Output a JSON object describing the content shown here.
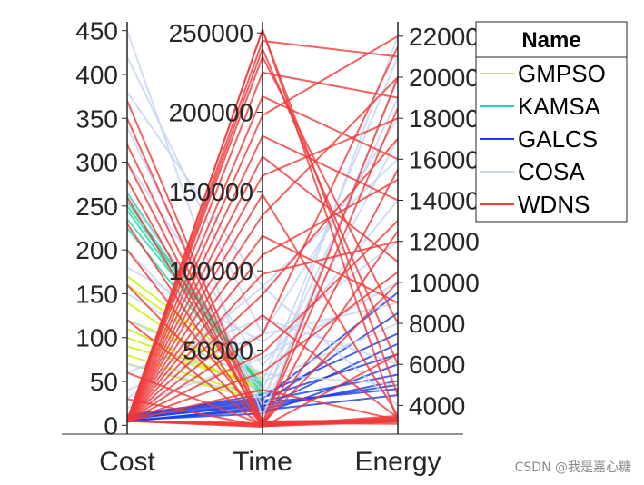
{
  "chart_data": {
    "type": "parallel-coordinates",
    "title": "",
    "axes": [
      {
        "name": "Cost",
        "range": [
          -10,
          460
        ],
        "ticks": [
          0,
          50,
          100,
          150,
          200,
          250,
          300,
          350,
          400,
          450
        ]
      },
      {
        "name": "Time",
        "range": [
          -3000,
          257000
        ],
        "ticks": [
          50000,
          100000,
          150000,
          200000,
          250000
        ]
      },
      {
        "name": "Energy",
        "range": [
          2600,
          22700
        ],
        "ticks": [
          4000,
          6000,
          8000,
          10000,
          12000,
          14000,
          16000,
          18000,
          20000,
          22000
        ]
      }
    ],
    "legend": {
      "title": "Name",
      "placement": "top-right"
    },
    "series": [
      {
        "name": "GMPSO",
        "color": "#c8f000",
        "samples": [
          [
            160,
            30000,
            null
          ],
          [
            140,
            22000,
            null
          ],
          [
            120,
            35000,
            null
          ],
          [
            100,
            26000,
            null
          ],
          [
            90,
            28000,
            null
          ],
          [
            80,
            20000,
            null
          ],
          [
            70,
            18000,
            null
          ],
          [
            170,
            32000,
            null
          ],
          [
            110,
            24000,
            null
          ]
        ]
      },
      {
        "name": "KAMSA",
        "color": "#22d6a8",
        "samples": [
          [
            255,
            25000,
            null
          ],
          [
            245,
            22000,
            null
          ],
          [
            235,
            28000,
            null
          ],
          [
            265,
            24000,
            null
          ],
          [
            225,
            20000,
            null
          ],
          [
            250,
            26000,
            null
          ]
        ]
      },
      {
        "name": "GALCS",
        "color": "#1a3be6",
        "samples": [
          [
            5,
            12000,
            4500
          ],
          [
            8,
            15000,
            5000
          ],
          [
            10,
            18000,
            5500
          ],
          [
            6,
            10000,
            6000
          ],
          [
            12,
            20000,
            6500
          ],
          [
            4,
            14000,
            7000
          ],
          [
            9,
            22000,
            7500
          ],
          [
            7,
            16000,
            8500
          ],
          [
            11,
            19000,
            9500
          ],
          [
            5,
            13000,
            5200
          ],
          [
            8,
            17000,
            4800
          ]
        ]
      },
      {
        "name": "COSA",
        "color": "#c6d3f2",
        "samples": [
          [
            450,
            8000,
            20000
          ],
          [
            420,
            60000,
            18000
          ],
          [
            380,
            90000,
            16000
          ],
          [
            300,
            40000,
            14000
          ],
          [
            260,
            30000,
            21000
          ],
          [
            180,
            55000,
            12000
          ],
          [
            120,
            30000,
            8000
          ],
          [
            60,
            70000,
            6000
          ],
          [
            30,
            90000,
            4000
          ],
          [
            20,
            45000,
            10000
          ],
          [
            200,
            25000,
            19000
          ],
          [
            340,
            15000,
            22000
          ],
          [
            150,
            35000,
            5000
          ],
          [
            70,
            20000,
            17000
          ],
          [
            40,
            60000,
            9000
          ]
        ]
      },
      {
        "name": "WDNS",
        "color": "#f03a3a",
        "samples": [
          [
            5,
            252000,
            3200
          ],
          [
            5,
            245000,
            21000
          ],
          [
            5,
            235000,
            8000
          ],
          [
            5,
            225000,
            19000
          ],
          [
            5,
            210000,
            16000
          ],
          [
            5,
            198000,
            22000
          ],
          [
            5,
            185000,
            14000
          ],
          [
            5,
            172000,
            11000
          ],
          [
            5,
            160000,
            18000
          ],
          [
            5,
            148000,
            3500
          ],
          [
            5,
            135000,
            20000
          ],
          [
            5,
            122000,
            9000
          ],
          [
            5,
            110000,
            15000
          ],
          [
            5,
            98000,
            12000
          ],
          [
            5,
            85000,
            17000
          ],
          [
            5,
            72000,
            3400
          ],
          [
            5,
            60000,
            21500
          ],
          [
            5,
            48000,
            13000
          ],
          [
            5,
            36000,
            10500
          ],
          [
            5,
            25000,
            3300
          ],
          [
            370,
            5000,
            3200
          ],
          [
            350,
            3000,
            3300
          ],
          [
            320,
            4000,
            3100
          ],
          [
            300,
            2000,
            3200
          ],
          [
            280,
            3000,
            3400
          ],
          [
            260,
            5000,
            3300
          ],
          [
            230,
            2000,
            3500
          ],
          [
            200,
            4000,
            3200
          ],
          [
            160,
            3000,
            3300
          ],
          [
            120,
            2000,
            3400
          ],
          [
            60,
            3000,
            3200
          ],
          [
            30,
            2000,
            3300
          ],
          [
            5,
            4000,
            20000
          ],
          [
            5,
            3000,
            18500
          ],
          [
            5,
            2000,
            15500
          ],
          [
            5,
            2500,
            12500
          ],
          [
            5,
            3500,
            10000
          ],
          [
            5,
            1500,
            6500
          ],
          [
            5,
            252000,
            4500
          ],
          [
            5,
            240000,
            6000
          ]
        ]
      }
    ]
  },
  "watermark": "CSDN @我是嘉心糖"
}
